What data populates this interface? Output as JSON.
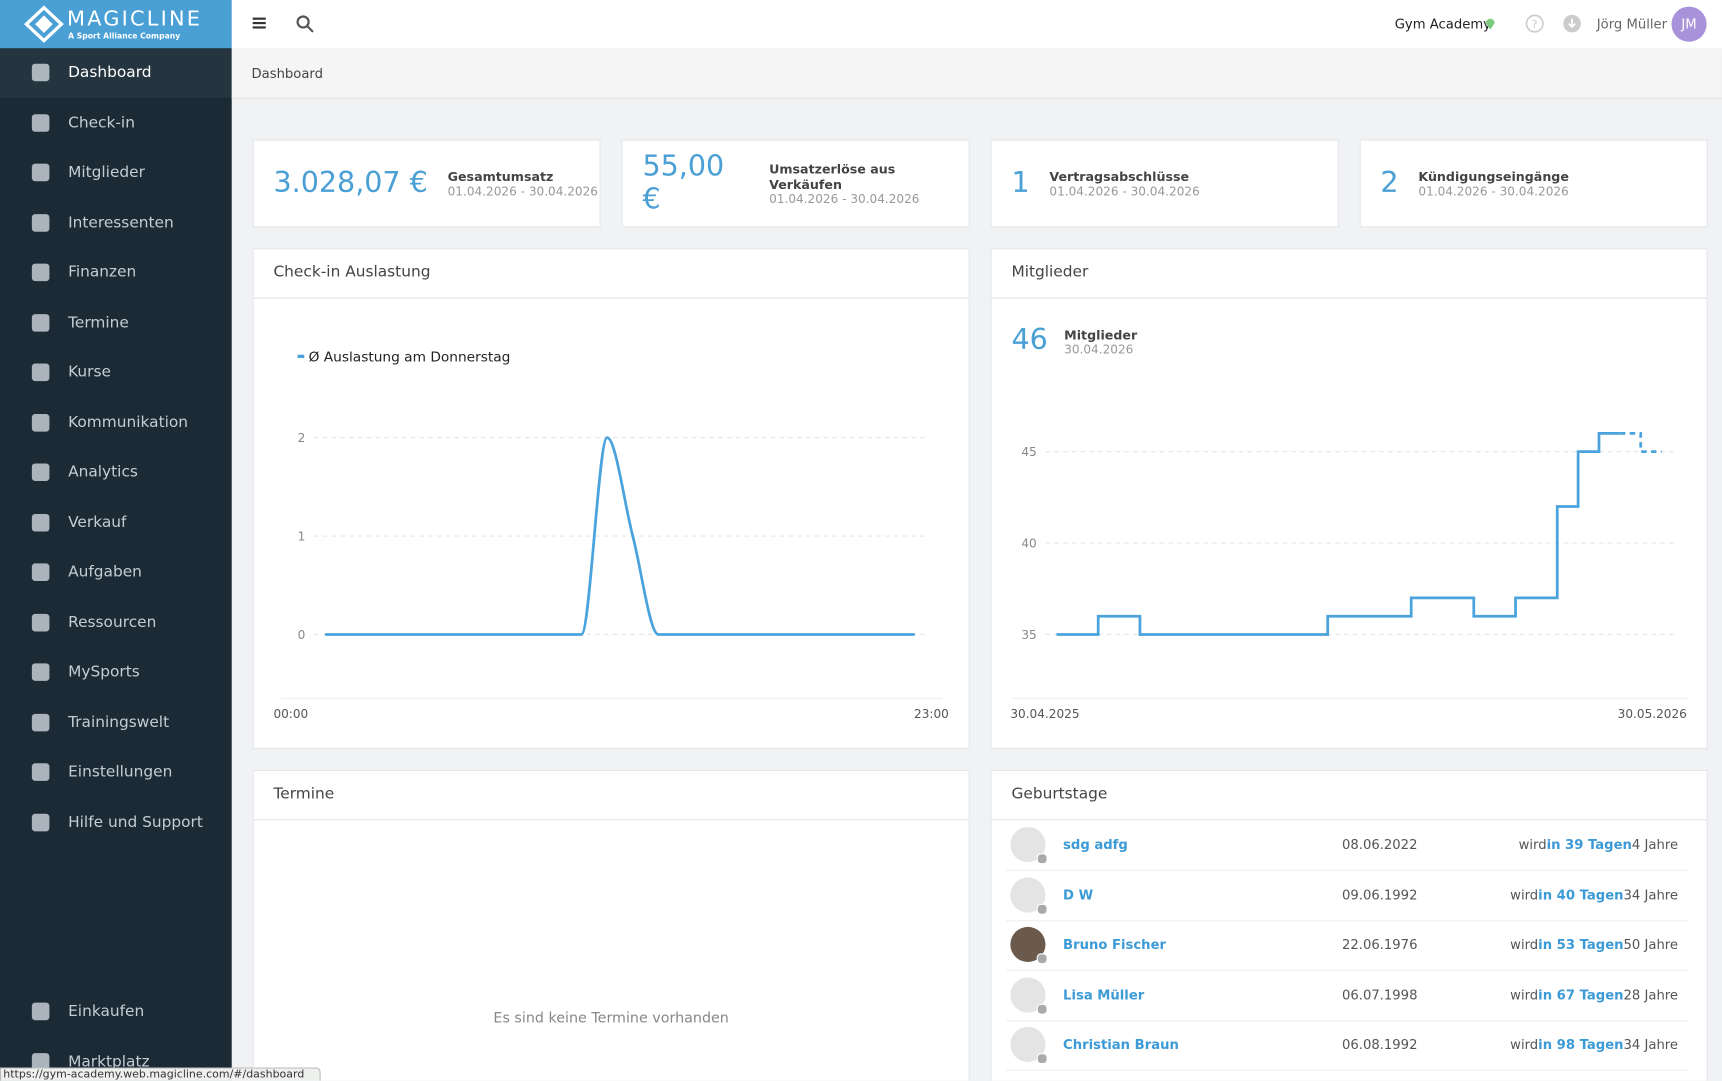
{
  "brand": {
    "name": "MAGICLINE",
    "tagline": "A Sport Alliance Company"
  },
  "sidebar": {
    "items": [
      "Dashboard",
      "Check-in",
      "Mitglieder",
      "Interessenten",
      "Finanzen",
      "Termine",
      "Kurse",
      "Kommunikation",
      "Analytics",
      "Verkauf",
      "Aufgaben",
      "Ressourcen",
      "MySports",
      "Trainingswelt",
      "Einstellungen",
      "Hilfe und Support"
    ],
    "bottom": [
      "Einkaufen",
      "Marktplatz"
    ]
  },
  "topbar": {
    "studio": "Gym Academy",
    "user": "Jörg Müller",
    "initials": "JM"
  },
  "breadcrumb": "Dashboard",
  "kpis": [
    {
      "value": "3.028,07 €",
      "label": "Gesamtumsatz",
      "period": "01.04.2026 - 30.04.2026"
    },
    {
      "value": "55,00 €",
      "label": "Umsatzerlöse aus Verkäufen",
      "period": "01.04.2026 - 30.04.2026"
    },
    {
      "value": "1",
      "label": "Vertragsabschlüsse",
      "period": "01.04.2026 - 30.04.2026"
    },
    {
      "value": "2",
      "label": "Kündigungseingänge",
      "period": "01.04.2026 - 30.04.2026"
    }
  ],
  "members_panel": {
    "title": "Mitglieder",
    "count": "46",
    "label": "Mitglieder",
    "date": "30.04.2026"
  },
  "chart_data": [
    {
      "type": "line",
      "title": "Check-in Auslastung",
      "categories": [
        "00:00",
        null,
        null,
        null,
        null,
        null,
        null,
        null,
        null,
        null,
        null,
        null,
        null,
        null,
        null,
        null,
        null,
        null,
        null,
        null,
        null,
        null,
        null,
        "23:00"
      ],
      "series": [
        {
          "name": "Ø Auslastung am Donnerstag",
          "color": "#4aa3dc",
          "values": [
            0,
            0,
            0,
            0,
            0,
            0,
            0,
            0,
            0,
            0,
            0,
            2,
            1,
            0,
            0,
            0,
            0,
            0,
            0,
            0,
            0,
            0,
            0,
            0
          ]
        }
      ],
      "ylim": [
        -0.65,
        2.15
      ],
      "yticks": [
        0,
        1,
        2
      ],
      "grid": true,
      "smooth": true,
      "legend": "top-left"
    },
    {
      "type": "step",
      "categories": [
        "30.04.2025",
        null,
        null,
        null,
        null,
        null,
        null,
        null,
        null,
        null,
        null,
        null,
        null,
        null,
        null,
        null,
        null,
        null,
        null,
        null,
        null,
        null,
        null,
        null,
        null,
        null,
        null,
        null,
        null,
        "30.05.2026"
      ],
      "series": [
        {
          "color": "#4aa3dc",
          "dashed": false,
          "values": [
            35,
            35,
            36,
            36,
            35,
            35,
            35,
            35,
            35,
            35,
            35,
            35,
            35,
            36,
            36,
            36,
            36,
            37,
            37,
            37,
            36,
            36,
            37,
            37,
            42,
            45,
            46,
            46,
            null,
            null
          ]
        },
        {
          "color": "#4aa3dc",
          "dashed": true,
          "values": [
            null,
            null,
            null,
            null,
            null,
            null,
            null,
            null,
            null,
            null,
            null,
            null,
            null,
            null,
            null,
            null,
            null,
            null,
            null,
            null,
            null,
            null,
            null,
            null,
            null,
            null,
            null,
            46,
            45,
            45
          ]
        }
      ],
      "ylim": [
        31.5,
        47
      ],
      "yticks": [
        35,
        40,
        45
      ],
      "grid": true
    }
  ],
  "appointments": {
    "title": "Termine",
    "empty": "Es sind keine Termine vorhanden"
  },
  "birthdays": {
    "title": "Geburtstage",
    "rows": [
      {
        "name": "sdg adfg",
        "date": "08.06.2022",
        "prefix": "wird",
        "days": "in 39 Tagen",
        "age": "4 Jahre"
      },
      {
        "name": "D W",
        "date": "09.06.1992",
        "prefix": "wird",
        "days": "in 40 Tagen",
        "age": "34 Jahre"
      },
      {
        "name": "Bruno Fischer",
        "date": "22.06.1976",
        "prefix": "wird",
        "days": "in 53 Tagen",
        "age": "50 Jahre"
      },
      {
        "name": "Lisa Müller",
        "date": "06.07.1998",
        "prefix": "wird",
        "days": "in 67 Tagen",
        "age": "28 Jahre"
      },
      {
        "name": "Christian Braun",
        "date": "06.08.1992",
        "prefix": "wird",
        "days": "in 98 Tagen",
        "age": "34 Jahre"
      }
    ]
  },
  "status_url": "https://gym-academy.web.magicline.com/#/dashboard"
}
